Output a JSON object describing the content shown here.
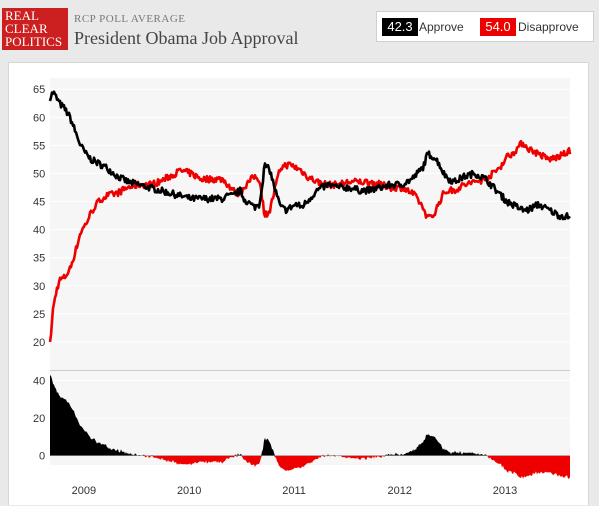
{
  "header": {
    "logo": {
      "line1": "REAL",
      "line2": "CLEAR",
      "line3": "POLITICS"
    },
    "subtitle": "RCP POLL AVERAGE",
    "title": "President Obama Job Approval"
  },
  "legend": {
    "approve_value": "42.3",
    "approve_label": "Approve",
    "disapprove_value": "54.0",
    "disapprove_label": "Disapprove"
  },
  "colors": {
    "approve": "#000000",
    "disapprove": "#ee0000",
    "logo": "#cc1f1f",
    "plot_bg": "#f6f6f6"
  },
  "chart_data": [
    {
      "type": "line",
      "title": "President Obama Job Approval",
      "ylim": [
        15,
        67
      ],
      "yticks": [
        20,
        25,
        30,
        35,
        40,
        45,
        50,
        55,
        60,
        65
      ],
      "xlim": [
        2009.06,
        2014.0
      ],
      "xticks": [
        {
          "label": "2009",
          "value": 2009.38
        },
        {
          "label": "2010",
          "value": 2010.38
        },
        {
          "label": "2011",
          "value": 2011.38
        },
        {
          "label": "2012",
          "value": 2012.38
        },
        {
          "label": "2013",
          "value": 2013.38
        }
      ],
      "grid": true,
      "x": [
        2009.06,
        2009.09,
        2009.12,
        2009.15,
        2009.2,
        2009.25,
        2009.3,
        2009.35,
        2009.4,
        2009.45,
        2009.5,
        2009.55,
        2009.6,
        2009.7,
        2009.8,
        2009.9,
        2010.0,
        2010.1,
        2010.2,
        2010.3,
        2010.4,
        2010.5,
        2010.6,
        2010.7,
        2010.75,
        2010.8,
        2010.83,
        2010.87,
        2010.9,
        2011.0,
        2011.05,
        2011.1,
        2011.15,
        2011.2,
        2011.25,
        2011.3,
        2011.35,
        2011.4,
        2011.45,
        2011.5,
        2011.6,
        2011.7,
        2011.8,
        2011.9,
        2012.0,
        2012.1,
        2012.2,
        2012.3,
        2012.4,
        2012.5,
        2012.55,
        2012.6,
        2012.65,
        2012.7,
        2012.75,
        2012.8,
        2012.85,
        2012.9,
        2013.0,
        2013.1,
        2013.2,
        2013.3,
        2013.35,
        2013.4,
        2013.45,
        2013.5,
        2013.55,
        2013.6,
        2013.7,
        2013.8,
        2013.9,
        2014.0
      ],
      "series": [
        {
          "name": "Approve",
          "values": [
            63.5,
            64.5,
            63.5,
            62.5,
            61.5,
            60.0,
            57.5,
            55.0,
            53.5,
            52.5,
            52.0,
            51.5,
            51.0,
            49.5,
            48.5,
            48.0,
            47.5,
            47.0,
            46.5,
            46.0,
            45.5,
            45.5,
            45.5,
            45.5,
            46.0,
            46.0,
            46.5,
            47.0,
            45.5,
            44.0,
            44.5,
            51.5,
            50.5,
            47.0,
            44.0,
            43.5,
            44.0,
            44.5,
            44.0,
            45.0,
            47.0,
            48.0,
            47.5,
            47.5,
            47.0,
            47.0,
            47.5,
            48.0,
            48.0,
            49.0,
            50.0,
            51.0,
            53.5,
            53.0,
            52.0,
            50.0,
            49.0,
            48.5,
            49.5,
            50.0,
            49.0,
            47.0,
            46.0,
            45.0,
            44.5,
            44.0,
            43.5,
            43.5,
            44.5,
            43.5,
            42.5,
            42.3
          ]
        },
        {
          "name": "Disapprove",
          "values": [
            19.5,
            26.0,
            29.0,
            31.0,
            31.5,
            33.0,
            36.0,
            39.5,
            41.0,
            43.0,
            44.5,
            45.5,
            46.0,
            46.5,
            47.5,
            48.0,
            48.0,
            48.5,
            49.5,
            50.5,
            50.0,
            49.0,
            49.0,
            49.0,
            48.0,
            47.0,
            46.5,
            46.5,
            47.5,
            49.5,
            49.0,
            42.5,
            43.5,
            47.5,
            51.0,
            51.5,
            51.5,
            51.0,
            50.5,
            49.5,
            48.5,
            48.0,
            48.0,
            48.5,
            48.5,
            48.5,
            48.0,
            47.5,
            47.5,
            46.5,
            45.5,
            44.0,
            42.0,
            42.5,
            44.5,
            46.5,
            47.0,
            47.0,
            48.0,
            48.5,
            49.0,
            50.5,
            51.5,
            53.0,
            53.5,
            54.5,
            55.5,
            54.5,
            53.5,
            52.5,
            53.0,
            54.0
          ]
        }
      ]
    },
    {
      "type": "area",
      "title": "",
      "ylim": [
        -5,
        45
      ],
      "yticks": [
        0,
        20,
        40
      ],
      "series": [
        {
          "name": "",
          "derived_from": "Approve minus Disapprove"
        }
      ]
    }
  ]
}
